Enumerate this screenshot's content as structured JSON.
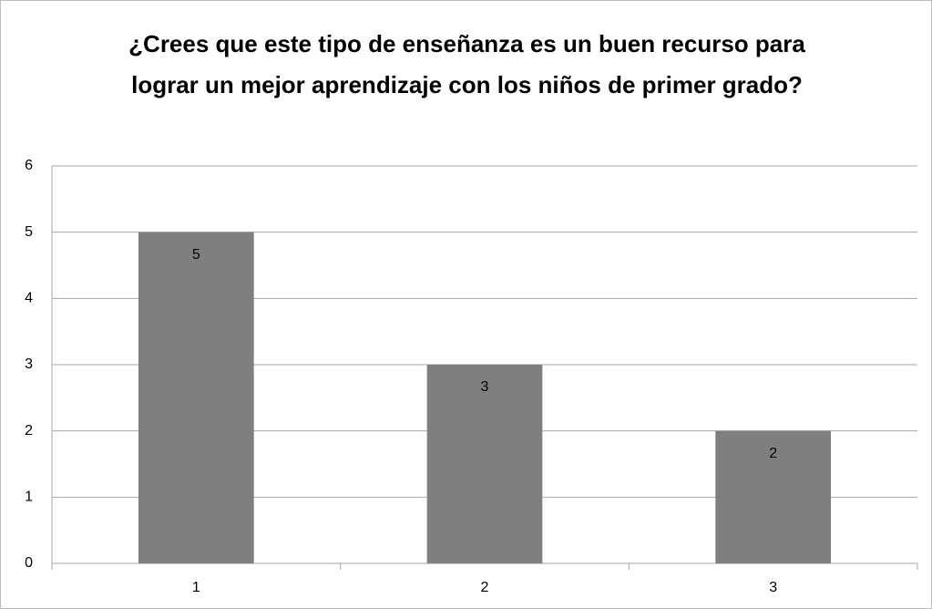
{
  "chart_data": {
    "type": "bar",
    "title": "¿Crees que este tipo de enseñanza es un buen recurso para lograr un mejor aprendizaje con los niños de primer grado?",
    "categories": [
      "1",
      "2",
      "3"
    ],
    "values": [
      5,
      3,
      2
    ],
    "color": "#7f7f7f",
    "ylim": [
      0,
      6
    ],
    "yticks": [
      0,
      1,
      2,
      3,
      4,
      5,
      6
    ],
    "grid": true
  }
}
